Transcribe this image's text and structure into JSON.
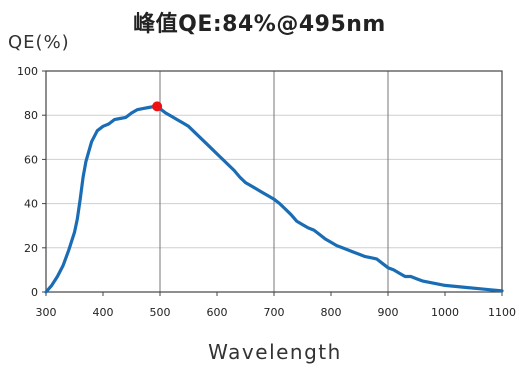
{
  "chart_data": {
    "type": "line",
    "title": "峰值QE:84%@495nm",
    "ylabel": "QE(%)",
    "xlabel": "Wavelength",
    "xlim": [
      300,
      1100
    ],
    "ylim": [
      0,
      100
    ],
    "x_ticks": [
      300,
      400,
      500,
      600,
      700,
      800,
      900,
      1000,
      1100
    ],
    "y_ticks": [
      0,
      20,
      40,
      60,
      80,
      100
    ],
    "grid": true,
    "line_color": "#1a6db5",
    "series": [
      {
        "x": [
          300,
          310,
          320,
          330,
          340,
          350,
          355,
          360,
          365,
          370,
          380,
          390,
          400,
          410,
          420,
          430,
          440,
          450,
          460,
          470,
          480,
          490,
          495,
          500,
          510,
          520,
          530,
          540,
          550,
          560,
          570,
          580,
          590,
          600,
          610,
          620,
          630,
          640,
          650,
          660,
          670,
          680,
          690,
          700,
          710,
          720,
          730,
          740,
          750,
          760,
          770,
          780,
          790,
          800,
          810,
          820,
          830,
          840,
          850,
          860,
          870,
          880,
          890,
          900,
          910,
          920,
          930,
          940,
          950,
          960,
          970,
          980,
          990,
          1000,
          1020,
          1040,
          1060,
          1080,
          1100
        ],
        "y": [
          0,
          3,
          7,
          12,
          19,
          27,
          33,
          42,
          52,
          59,
          68,
          73,
          75,
          76,
          78,
          78.5,
          79,
          81,
          82.5,
          83,
          83.5,
          84,
          84,
          83,
          81,
          79.5,
          78,
          76.5,
          75,
          72.5,
          70,
          67.5,
          65,
          62.5,
          60,
          57.5,
          55,
          52,
          49.5,
          48,
          46.5,
          45,
          43.5,
          42,
          40,
          37.5,
          35,
          32,
          30.5,
          29,
          28,
          26,
          24,
          22.5,
          21,
          20,
          19,
          18,
          17,
          16,
          15.5,
          15,
          13,
          11,
          10,
          8.5,
          7,
          7,
          6,
          5,
          4.5,
          4,
          3.5,
          3,
          2.5,
          2,
          1.5,
          1,
          0.5
        ]
      }
    ],
    "peak": {
      "x": 495,
      "y": 84,
      "color": "#ee1111"
    }
  }
}
